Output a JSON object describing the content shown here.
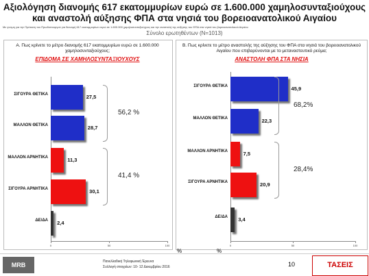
{
  "header": {
    "title": "Αξιολόγηση διανομής 617 εκατομμυρίων ευρώ σε 1.600.000 χαμηλοσυνταξιούχους και αναστολή αύξησης ΦΠΑ στα νησιά του βορειοανατολικού Αιγαίου",
    "subtitle": "Με γνώμη για την Πρόταση του Πρωθυπουργού για διανομή 617 εκατομμυρίων ευρώ σε 1.600.000 χαμηλοσυνταξιούχους και την αναστολή της αύξησης του ΦΠΑ στα νησιά του βορειοανατολικού Αιγαίου",
    "sample": "Σύνολο ερωτηθέντων (N=1013)"
  },
  "chart_data": [
    {
      "type": "bar",
      "question": "Α. Πως κρίνετε το μέτρο  διανομής 617 εκατομμυρίων ευρώ σε 1.600.000 χαμηλοσυνταξιούχους;",
      "title": "ΕΠΙΔΟΜΑ ΣΕ ΧΑΜΗΛΟΣΥΝΤΑΞΙΟΥΧΟΥΣ",
      "categories": [
        "ΣΙΓΟΥΡΑ ΘΕΤΙΚΑ",
        "ΜΑΛΛΟΝ ΘΕΤΙΚΑ",
        "ΜΑΛΛΟΝ ΑΡΝΗΤΙΚΑ",
        "ΣΙΓΟΥΡΑ ΑΡΝΗΤΙΚΑ",
        "ΔΕ/ΔΑ"
      ],
      "values": [
        27.5,
        28.7,
        11.3,
        30.1,
        2.4
      ],
      "value_labels": [
        "27,5",
        "28,7",
        "11,3",
        "30,1",
        "2,4"
      ],
      "colors": [
        "#1f2ec8",
        "#1f2ec8",
        "#ee1111",
        "#ee1111",
        "#333333"
      ],
      "annotations": [
        "56,2 %",
        "41,4 %"
      ],
      "xlim": [
        0,
        100
      ],
      "xticks": [
        0,
        50,
        100
      ],
      "xlabel": "%"
    },
    {
      "type": "bar",
      "question": "Β. Πως κρίνετε το μέτρο αναστολής της αύξησης του ΦΠΑ στα νησιά του βορειοανατολικού Αιγαίου που επιβαρύνονται με το μεταναστευτικό ρεύμα;",
      "title": "ΑΝΑΣΤΟΛΗ ΦΠΑ ΣΤΑ ΝΗΣΙΑ",
      "categories": [
        "ΣΙΓΟΥΡΑ ΘΕΤΙΚΑ",
        "ΜΑΛΛΟΝ ΘΕΤΙΚΑ",
        "ΜΑΛΛΟΝ ΑΡΝΗΤΙΚΑ",
        "ΣΙΓΟΥΡΑ ΑΡΝΗΤΙΚΑ",
        "ΔΕ/ΔΑ"
      ],
      "values": [
        45.9,
        22.3,
        7.5,
        20.9,
        3.4
      ],
      "value_labels": [
        "45,9",
        "22,3",
        "7,5",
        "20,9",
        "3,4"
      ],
      "colors": [
        "#1f2ec8",
        "#1f2ec8",
        "#ee1111",
        "#ee1111",
        "#333333"
      ],
      "annotations": [
        "68,2%",
        "28,4%"
      ],
      "xlim": [
        0,
        100
      ],
      "xticks": [
        0,
        50,
        100
      ],
      "xlabel": "%"
    }
  ],
  "footer": {
    "logo_left": "MRB HELLAS S.A.",
    "line1": "Πανελλαδική Τηλεφωνική Έρευνα",
    "line2": "Συλλογή στοιχείων: 10- 12 Δεκεμβρίου 2016",
    "page": "10",
    "logo_right": "ΤΑΣΕΙΣ TRENDS"
  }
}
